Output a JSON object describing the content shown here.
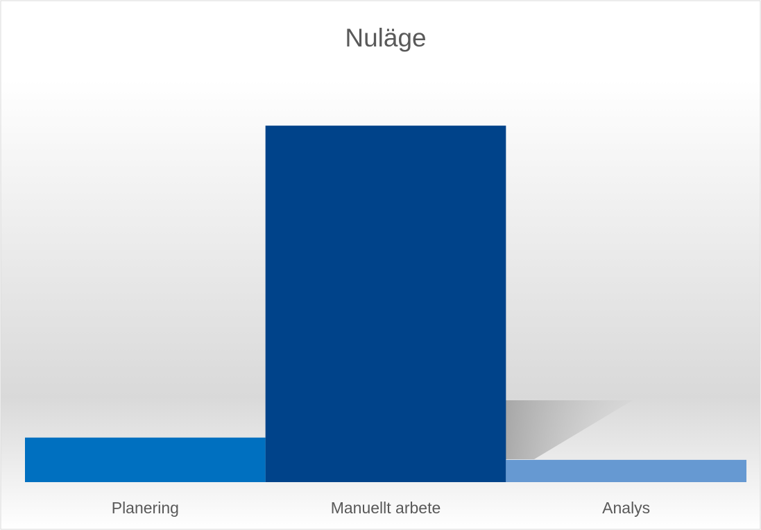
{
  "chart_data": {
    "type": "bar",
    "title": "Nuläge",
    "categories": [
      "Planering",
      "Manuellt arbete",
      "Analys"
    ],
    "values": [
      10,
      80,
      5
    ],
    "colors": [
      "#0070c0",
      "#00438a",
      "#6699d2"
    ],
    "ylim": [
      0,
      85
    ]
  }
}
